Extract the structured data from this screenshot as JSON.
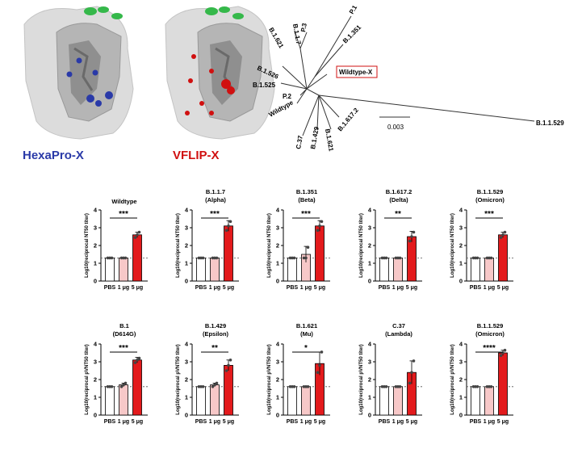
{
  "structures": [
    {
      "label": "HexaPro-X",
      "color": "#2a3aa8"
    },
    {
      "label": "VFLIP-X",
      "color": "#d01010"
    }
  ],
  "tree": {
    "highlight": "Wildtype-X",
    "leaves": [
      "P.1",
      "B.1.351",
      "B.1.1.7",
      "B.1.621",
      "P.3",
      "B.1.526",
      "B.1.525",
      "P.2",
      "Wildtype",
      "C.37",
      "B.1.429",
      "B.1.617.2",
      "B.1.621",
      "B.1.1.529"
    ],
    "scale_label": "0.003"
  },
  "colors": {
    "pbs": "#ffffff",
    "low": "#f7c8c8",
    "high": "#e31a1c",
    "dots": "#444444"
  },
  "chart_data": [
    {
      "type": "bar",
      "title": "Wildtype",
      "subtitle": "",
      "categories": [
        "PBS",
        "1 μg",
        "5 μg"
      ],
      "values": [
        1.3,
        1.3,
        2.6
      ],
      "errors": [
        0,
        0,
        0.15
      ],
      "points": [
        [
          1.3,
          1.3,
          1.3
        ],
        [
          1.3,
          1.3,
          1.3
        ],
        [
          2.45,
          2.6,
          2.75
        ]
      ],
      "ylim": [
        0,
        4
      ],
      "yticks": [
        "0",
        "1",
        "2",
        "3",
        "4"
      ],
      "ylabel": "Log10(reciprocal NT50 titer)",
      "lod": 1.3,
      "sig": "***"
    },
    {
      "type": "bar",
      "title": "B.1.1.7",
      "subtitle": "(Alpha)",
      "categories": [
        "PBS",
        "1 μg",
        "5 μg"
      ],
      "values": [
        1.3,
        1.3,
        3.1
      ],
      "errors": [
        0,
        0,
        0.3
      ],
      "points": [
        [
          1.3,
          1.3,
          1.3
        ],
        [
          1.3,
          1.3,
          1.3
        ],
        [
          2.85,
          3.1,
          3.35
        ]
      ],
      "ylim": [
        0,
        4
      ],
      "yticks": [
        "0",
        "1",
        "2",
        "3",
        "4"
      ],
      "ylabel": "Log10(reciprocal NT50 titer)",
      "lod": 1.3,
      "sig": "***"
    },
    {
      "type": "bar",
      "title": "B.1.351",
      "subtitle": "(Beta)",
      "categories": [
        "PBS",
        "1 μg",
        "5 μg"
      ],
      "values": [
        1.3,
        1.5,
        3.1
      ],
      "errors": [
        0,
        0.45,
        0.3
      ],
      "points": [
        [
          1.3,
          1.3,
          1.3
        ],
        [
          1.3,
          1.3,
          1.9
        ],
        [
          2.85,
          3.1,
          3.35
        ]
      ],
      "ylim": [
        0,
        4
      ],
      "yticks": [
        "0",
        "1",
        "2",
        "3",
        "4"
      ],
      "ylabel": "Log10(reciprocal NT50 titer)",
      "lod": 1.3,
      "sig": "***"
    },
    {
      "type": "bar",
      "title": "B.1.617.2",
      "subtitle": "(Delta)",
      "categories": [
        "PBS",
        "1 μg",
        "5 μg"
      ],
      "values": [
        1.3,
        1.3,
        2.5
      ],
      "errors": [
        0,
        0,
        0.3
      ],
      "points": [
        [
          1.3,
          1.3,
          1.3
        ],
        [
          1.3,
          1.3,
          1.3
        ],
        [
          2.25,
          2.5,
          2.75
        ]
      ],
      "ylim": [
        0,
        4
      ],
      "yticks": [
        "0",
        "1",
        "2",
        "3",
        "4"
      ],
      "ylabel": "Log10(reciprocal NT50 titer)",
      "lod": 1.3,
      "sig": "**"
    },
    {
      "type": "bar",
      "title": "B.1.1.529",
      "subtitle": "(Omicron)",
      "categories": [
        "PBS",
        "1 μg",
        "5 μg"
      ],
      "values": [
        1.3,
        1.3,
        2.6
      ],
      "errors": [
        0,
        0,
        0.15
      ],
      "points": [
        [
          1.3,
          1.3,
          1.3
        ],
        [
          1.3,
          1.3,
          1.3
        ],
        [
          2.45,
          2.6,
          2.75
        ]
      ],
      "ylim": [
        0,
        4
      ],
      "yticks": [
        "0",
        "1",
        "2",
        "3",
        "4"
      ],
      "ylabel": "Log10(reciprocal NT50 titer)",
      "lod": 1.3,
      "sig": "***"
    },
    {
      "type": "bar",
      "title": "B.1",
      "subtitle": "(D614G)",
      "categories": [
        "PBS",
        "1 μg",
        "5 μg"
      ],
      "values": [
        1.6,
        1.7,
        3.1
      ],
      "errors": [
        0,
        0.1,
        0.15
      ],
      "points": [
        [
          1.6,
          1.6,
          1.6
        ],
        [
          1.6,
          1.7,
          1.8
        ],
        [
          2.95,
          3.1,
          3.2
        ]
      ],
      "ylim": [
        0,
        4
      ],
      "yticks": [
        "0",
        "1",
        "2",
        "3",
        "4"
      ],
      "ylabel": "Log10(reciprocal pVNT50 titer)",
      "lod": 1.6,
      "sig": "***"
    },
    {
      "type": "bar",
      "title": "B.1.429",
      "subtitle": "(Epsilon)",
      "categories": [
        "PBS",
        "1 μg",
        "5 μg"
      ],
      "values": [
        1.6,
        1.7,
        2.8
      ],
      "errors": [
        0,
        0.1,
        0.3
      ],
      "points": [
        [
          1.6,
          1.6,
          1.6
        ],
        [
          1.6,
          1.7,
          1.8
        ],
        [
          2.5,
          2.8,
          3.1
        ]
      ],
      "ylim": [
        0,
        4
      ],
      "yticks": [
        "0",
        "1",
        "2",
        "3",
        "4"
      ],
      "ylabel": "Log10(reciprocal pVNT50 titer)",
      "lod": 1.6,
      "sig": "**"
    },
    {
      "type": "bar",
      "title": "B.1.621",
      "subtitle": "(Mu)",
      "categories": [
        "PBS",
        "1 μg",
        "5 μg"
      ],
      "values": [
        1.6,
        1.6,
        2.9
      ],
      "errors": [
        0,
        0,
        0.65
      ],
      "points": [
        [
          1.6,
          1.6,
          1.6
        ],
        [
          1.6,
          1.6,
          1.6
        ],
        [
          2.4,
          2.8,
          3.55
        ]
      ],
      "ylim": [
        0,
        4
      ],
      "yticks": [
        "0",
        "1",
        "2",
        "3",
        "4"
      ],
      "ylabel": "Log10(reciprocal pVNT50 titer)",
      "lod": 1.6,
      "sig": "*"
    },
    {
      "type": "bar",
      "title": "C.37",
      "subtitle": "(Lambda)",
      "categories": [
        "PBS",
        "1 μg",
        "5 μg"
      ],
      "values": [
        1.6,
        1.6,
        2.4
      ],
      "errors": [
        0,
        0,
        0.65
      ],
      "points": [
        [
          1.6,
          1.6,
          1.6
        ],
        [
          1.6,
          1.6,
          1.6
        ],
        [
          1.8,
          2.4,
          3.05
        ]
      ],
      "ylim": [
        0,
        4
      ],
      "yticks": [
        "0",
        "1",
        "2",
        "3",
        "4"
      ],
      "ylabel": "Log10(reciprocal pVNT50 titer)",
      "lod": 1.6,
      "sig": ""
    },
    {
      "type": "bar",
      "title": "B.1.1.529",
      "subtitle": "(Omicron)",
      "categories": [
        "PBS",
        "1 μg",
        "5 μg"
      ],
      "values": [
        1.6,
        1.6,
        3.5
      ],
      "errors": [
        0,
        0,
        0.15
      ],
      "points": [
        [
          1.6,
          1.6,
          1.6
        ],
        [
          1.6,
          1.6,
          1.6
        ],
        [
          3.35,
          3.5,
          3.65
        ]
      ],
      "ylim": [
        0,
        4
      ],
      "yticks": [
        "0",
        "1",
        "2",
        "3",
        "4"
      ],
      "ylabel": "Log10(reciprocal pVNT50 titer)",
      "lod": 1.6,
      "sig": "****"
    }
  ]
}
